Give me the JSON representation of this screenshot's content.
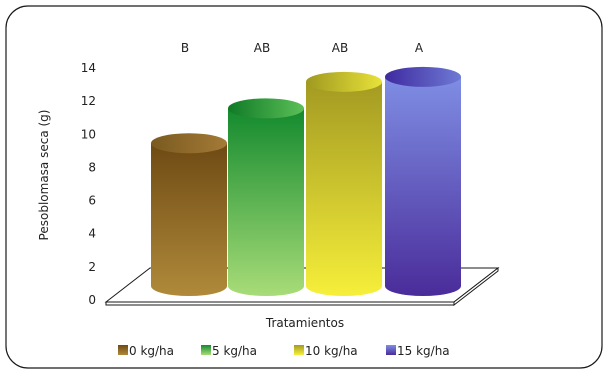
{
  "chart_data": {
    "type": "bar",
    "categories": [
      "0 kg/ha",
      "5 kg/ha",
      "10 kg/ha",
      "15 kg/ha"
    ],
    "values": [
      8.6,
      10.7,
      12.3,
      12.6
    ],
    "letters": [
      "B",
      "AB",
      "AB",
      "A"
    ],
    "xlabel": "Tratamientos",
    "ylabel": "Pesoblomasa seca (g)",
    "ylim": [
      0,
      14
    ],
    "yticks": [
      "0",
      "2",
      "4",
      "6",
      "8",
      "10",
      "12",
      "14"
    ],
    "legend_labels": [
      "0 kg/ha",
      "5 kg/ha",
      "10 kg/ha",
      "15 kg/ha"
    ],
    "legend_position": "bottom",
    "bar_style": "3d-cylinder",
    "grid": false,
    "colors": [
      "#8a6420",
      "#3aa03a",
      "#cbc324",
      "#5a4cb0"
    ]
  }
}
